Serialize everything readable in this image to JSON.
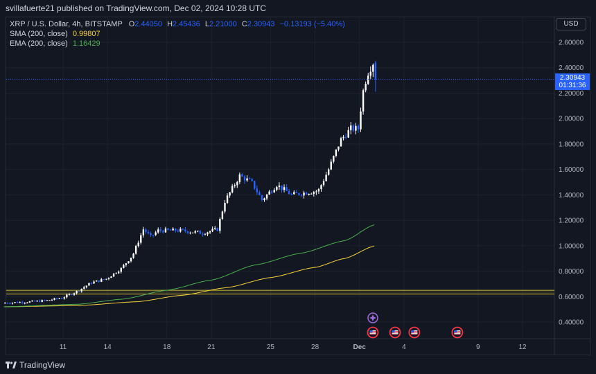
{
  "header": {
    "publisher": "svillafuerte21 published on TradingView.com, Dec 02, 2024 10:28 UTC"
  },
  "legend": {
    "symbol": "XRP / U.S. Dollar, 4h, BITSTAMP",
    "open_label": "O",
    "open": "2.44050",
    "high_label": "H",
    "high": "2.45436",
    "low_label": "L",
    "low": "2.21000",
    "close_label": "C",
    "close": "2.30943",
    "change": "−0.13193 (−5.40%)",
    "sma_label": "SMA (200, close)",
    "sma_value": "0.99807",
    "ema_label": "EMA (200, close)",
    "ema_value": "1.16429"
  },
  "currency_button": "USD",
  "price_tag": {
    "price": "2.30943",
    "countdown": "01:31:36"
  },
  "footer": {
    "brand": "TradingView"
  },
  "colors": {
    "background": "#131722",
    "up_candle": "#ffffff",
    "down_candle": "#2962ff",
    "sma": "#f7d23c",
    "ema": "#4caf50",
    "support_band": "#c7b53a",
    "price_line": "#2962ff"
  },
  "chart_data": {
    "type": "candlestick",
    "symbol": "XRP / U.S. Dollar",
    "timeframe": "4h",
    "exchange": "BITSTAMP",
    "ylim": [
      0.25,
      2.7
    ],
    "y_ticks": [
      "0.40000",
      "0.60000",
      "0.80000",
      "1.00000",
      "1.20000",
      "1.40000",
      "1.60000",
      "1.80000",
      "2.00000",
      "2.20000",
      "2.40000",
      "2.60000"
    ],
    "x_ticks": [
      {
        "label": "11",
        "day": 11
      },
      {
        "label": "14",
        "day": 14
      },
      {
        "label": "18",
        "day": 18
      },
      {
        "label": "21",
        "day": 21
      },
      {
        "label": "25",
        "day": 25
      },
      {
        "label": "28",
        "day": 28
      },
      {
        "label": "Dec",
        "day": 31
      },
      {
        "label": "4",
        "day": 34
      },
      {
        "label": "9",
        "day": 39
      },
      {
        "label": "12",
        "day": 42
      }
    ],
    "xlim_day": [
      7,
      44.8
    ],
    "price_path": [
      {
        "day": 7.0,
        "price": 0.55
      },
      {
        "day": 9.0,
        "price": 0.56
      },
      {
        "day": 10.0,
        "price": 0.57
      },
      {
        "day": 11.0,
        "price": 0.59
      },
      {
        "day": 12.0,
        "price": 0.64
      },
      {
        "day": 13.0,
        "price": 0.71
      },
      {
        "day": 14.0,
        "price": 0.74
      },
      {
        "day": 15.0,
        "price": 0.82
      },
      {
        "day": 15.8,
        "price": 0.93
      },
      {
        "day": 16.5,
        "price": 1.13
      },
      {
        "day": 17.0,
        "price": 1.07
      },
      {
        "day": 17.5,
        "price": 1.12
      },
      {
        "day": 19.0,
        "price": 1.12
      },
      {
        "day": 20.5,
        "price": 1.1
      },
      {
        "day": 21.5,
        "price": 1.13
      },
      {
        "day": 22.0,
        "price": 1.35
      },
      {
        "day": 23.0,
        "price": 1.55
      },
      {
        "day": 23.8,
        "price": 1.5
      },
      {
        "day": 24.5,
        "price": 1.36
      },
      {
        "day": 25.5,
        "price": 1.48
      },
      {
        "day": 26.5,
        "price": 1.4
      },
      {
        "day": 27.5,
        "price": 1.42
      },
      {
        "day": 28.3,
        "price": 1.43
      },
      {
        "day": 29.0,
        "price": 1.6
      },
      {
        "day": 29.8,
        "price": 1.83
      },
      {
        "day": 30.5,
        "price": 1.92
      },
      {
        "day": 31.0,
        "price": 1.92
      },
      {
        "day": 31.3,
        "price": 2.2
      },
      {
        "day": 31.6,
        "price": 2.35
      },
      {
        "day": 32.0,
        "price": 2.44
      },
      {
        "day": 32.2,
        "price": 2.309
      }
    ],
    "last_candle": {
      "open": 2.4405,
      "high": 2.45436,
      "low": 2.21,
      "close": 2.30943
    },
    "current_price": 2.30943,
    "sma_200": {
      "last_value": 0.99807,
      "points": [
        {
          "day": 7,
          "value": 0.52
        },
        {
          "day": 12,
          "value": 0.53
        },
        {
          "day": 16,
          "value": 0.56
        },
        {
          "day": 19,
          "value": 0.61
        },
        {
          "day": 22,
          "value": 0.67
        },
        {
          "day": 25,
          "value": 0.75
        },
        {
          "day": 28,
          "value": 0.83
        },
        {
          "day": 30,
          "value": 0.9
        },
        {
          "day": 32,
          "value": 0.99807
        }
      ]
    },
    "ema_200": {
      "last_value": 1.16429,
      "points": [
        {
          "day": 7,
          "value": 0.52
        },
        {
          "day": 12,
          "value": 0.54
        },
        {
          "day": 15,
          "value": 0.58
        },
        {
          "day": 18,
          "value": 0.65
        },
        {
          "day": 21,
          "value": 0.73
        },
        {
          "day": 24,
          "value": 0.85
        },
        {
          "day": 27,
          "value": 0.94
        },
        {
          "day": 30,
          "value": 1.04
        },
        {
          "day": 32,
          "value": 1.16429
        }
      ]
    },
    "support_band": [
      0.62,
      0.65
    ],
    "event_markers": [
      {
        "day": 31.9,
        "icon": "star-icon"
      },
      {
        "day": 31.9,
        "icon": "us-flag-icon"
      },
      {
        "day": 33.4,
        "icon": "us-flag-icon"
      },
      {
        "day": 34.7,
        "icon": "us-flag-icon"
      },
      {
        "day": 37.6,
        "icon": "us-flag-icon"
      }
    ]
  }
}
